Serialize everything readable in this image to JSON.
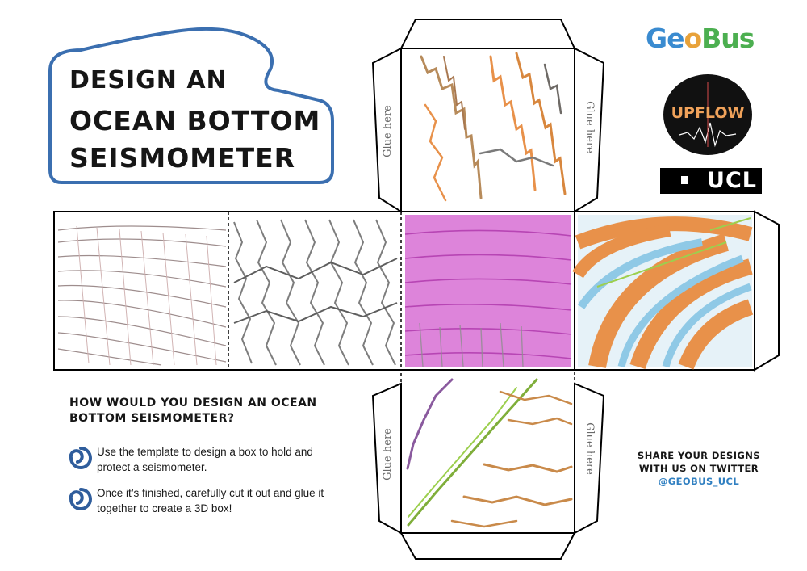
{
  "title": {
    "line1": "DESIGN AN",
    "line2": "OCEAN BOTTOM",
    "line3": "SEISMOMETER"
  },
  "glue_tabs": {
    "top_left": "Glue here",
    "top_right": "Glue here",
    "bottom_left": "Glue here",
    "bottom_right": "Glue here"
  },
  "instructions": {
    "question": "HOW WOULD YOU DESIGN AN OCEAN BOTTOM SEISMOMETER?",
    "steps": [
      "Use the template to design a box to hold and protect a seismometer.",
      "Once it’s finished, carefully cut it out and glue it together to create a 3D box!"
    ]
  },
  "share": {
    "line": "SHARE YOUR DESIGNS WITH US ON TWITTER",
    "handle": "@GEOBUS_UCL"
  },
  "logos": {
    "geobus_geo": "Ge",
    "geobus_o": "o",
    "geobus_bus": "Bus",
    "upflow": "UPFLOW",
    "ucl": "UCL"
  },
  "colors": {
    "wave_outline": "#3b6fb0",
    "swirl": "#2f5d9c",
    "handle": "#2f7fc1",
    "crayon_pink": "#cf58c8",
    "crayon_orange": "#e8914a",
    "crayon_blue": "#7fc4e8",
    "crayon_grey": "#8a8a8a",
    "crayon_green": "#7fae3a"
  }
}
